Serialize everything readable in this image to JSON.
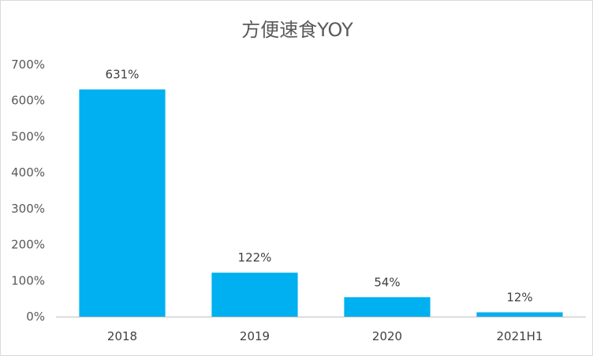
{
  "chart_data": {
    "type": "bar",
    "title": "方便速食YOY",
    "categories": [
      "2018",
      "2019",
      "2020",
      "2021H1"
    ],
    "values": [
      631,
      122,
      54,
      12
    ],
    "value_labels": [
      "631%",
      "122%",
      "54%",
      "12%"
    ],
    "yticks": [
      "0%",
      "100%",
      "200%",
      "300%",
      "400%",
      "500%",
      "600%",
      "700%"
    ],
    "ylim": [
      0,
      700
    ],
    "grid": false,
    "legend": "none",
    "bar_color": "#00b0f0"
  }
}
